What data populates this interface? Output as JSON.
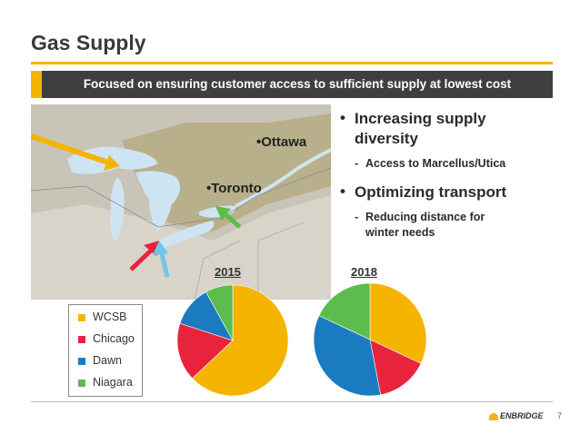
{
  "title": "Gas Supply",
  "banner": "Focused on ensuring customer access to sufficient supply at lowest cost",
  "cities": {
    "ottawa": "•Ottawa",
    "toronto": "•Toronto"
  },
  "bullets": [
    {
      "text": "Increasing supply diversity",
      "sub": "Access to Marcellus/Utica"
    },
    {
      "text": "Optimizing transport",
      "sub": "Reducing distance for winter needs"
    }
  ],
  "colors": {
    "wcsb": "#F5B400",
    "chicago": "#E8243C",
    "dawn": "#1B7BC1",
    "niagara": "#5BBD4C",
    "accent": "#F5B400",
    "banner_bg": "#3F3F3F"
  },
  "chart_data": [
    {
      "type": "pie",
      "title": "2015",
      "categories": [
        "WCSB",
        "Chicago",
        "Dawn",
        "Niagara"
      ],
      "values": [
        63,
        17,
        12,
        8
      ]
    },
    {
      "type": "pie",
      "title": "2018",
      "categories": [
        "WCSB",
        "Chicago",
        "Dawn",
        "Niagara"
      ],
      "values": [
        32,
        15,
        35,
        18
      ]
    }
  ],
  "legend": [
    "WCSB",
    "Chicago",
    "Dawn",
    "Niagara"
  ],
  "footer": {
    "logo": "ENBRIDGE",
    "page": "7"
  }
}
